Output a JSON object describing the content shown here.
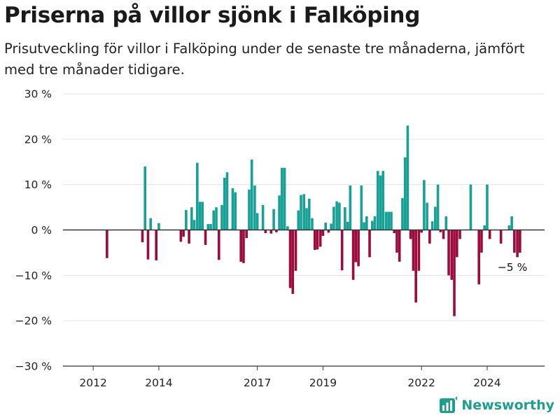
{
  "header": {
    "title": "Priserna på villor sjönk i Falköping",
    "subtitle": "Prisutveckling för villor i Falköping under de senaste tre månaderna, jämfört med tre månader tidigare."
  },
  "brand": {
    "name": "Newsworthy",
    "icon": "newsworthy-logo-icon"
  },
  "colors": {
    "positive": "#17a095",
    "negative": "#9b0b3d",
    "grid": "#e3e3e3",
    "zero": "#333333"
  },
  "chart_data": {
    "type": "bar",
    "title": "Priserna på villor sjönk i Falköping",
    "ylabel": "",
    "xlabel": "",
    "ylim": [
      -30,
      30
    ],
    "y_ticks": [
      {
        "value": 30,
        "label": "30 %"
      },
      {
        "value": 20,
        "label": "20 %"
      },
      {
        "value": 10,
        "label": "10 %"
      },
      {
        "value": 0,
        "label": "0 %"
      },
      {
        "value": -10,
        "label": "−10 %"
      },
      {
        "value": -20,
        "label": "−20 %"
      },
      {
        "value": -30,
        "label": "−30 %"
      }
    ],
    "x_ticks": [
      {
        "value": 2012.0,
        "label": "2012"
      },
      {
        "value": 2014.0,
        "label": "2014"
      },
      {
        "value": 2017.0,
        "label": "2017"
      },
      {
        "value": 2019.0,
        "label": "2019"
      },
      {
        "value": 2022.0,
        "label": "2022"
      },
      {
        "value": 2024.0,
        "label": "2024"
      }
    ],
    "xlim": [
      2011.08,
      2025.75
    ],
    "annotation": {
      "x": 2024.92,
      "value": -5,
      "label": "−5 %"
    },
    "points": [
      {
        "x": 2012.42,
        "v": -6.2
      },
      {
        "x": 2013.5,
        "v": -2.7
      },
      {
        "x": 2013.58,
        "v": 14.0
      },
      {
        "x": 2013.67,
        "v": -6.5
      },
      {
        "x": 2013.75,
        "v": 2.6
      },
      {
        "x": 2013.92,
        "v": -6.7
      },
      {
        "x": 2014.0,
        "v": 1.5
      },
      {
        "x": 2014.67,
        "v": -2.6
      },
      {
        "x": 2014.75,
        "v": -1.5
      },
      {
        "x": 2014.83,
        "v": 4.4
      },
      {
        "x": 2014.92,
        "v": -3.0
      },
      {
        "x": 2015.0,
        "v": 5.0
      },
      {
        "x": 2015.08,
        "v": 2.2
      },
      {
        "x": 2015.17,
        "v": 14.8
      },
      {
        "x": 2015.25,
        "v": 6.2
      },
      {
        "x": 2015.33,
        "v": 6.2
      },
      {
        "x": 2015.42,
        "v": -3.3
      },
      {
        "x": 2015.5,
        "v": 1.3
      },
      {
        "x": 2015.58,
        "v": 1.3
      },
      {
        "x": 2015.67,
        "v": 4.3
      },
      {
        "x": 2015.75,
        "v": 5.0
      },
      {
        "x": 2015.83,
        "v": -6.6
      },
      {
        "x": 2015.92,
        "v": 5.5
      },
      {
        "x": 2016.0,
        "v": 11.5
      },
      {
        "x": 2016.08,
        "v": 12.7
      },
      {
        "x": 2016.17,
        "v": 0.2
      },
      {
        "x": 2016.25,
        "v": 9.2
      },
      {
        "x": 2016.33,
        "v": 8.3
      },
      {
        "x": 2016.5,
        "v": -7.0
      },
      {
        "x": 2016.58,
        "v": -7.3
      },
      {
        "x": 2016.67,
        "v": -1.8
      },
      {
        "x": 2016.75,
        "v": 8.9
      },
      {
        "x": 2016.83,
        "v": 15.5
      },
      {
        "x": 2016.92,
        "v": 9.8
      },
      {
        "x": 2017.0,
        "v": 3.7
      },
      {
        "x": 2017.17,
        "v": 5.5
      },
      {
        "x": 2017.25,
        "v": -0.7
      },
      {
        "x": 2017.42,
        "v": -0.8
      },
      {
        "x": 2017.5,
        "v": 4.6
      },
      {
        "x": 2017.58,
        "v": -0.5
      },
      {
        "x": 2017.67,
        "v": 7.6
      },
      {
        "x": 2017.75,
        "v": 13.7
      },
      {
        "x": 2017.83,
        "v": 13.7
      },
      {
        "x": 2017.92,
        "v": 0.8
      },
      {
        "x": 2018.0,
        "v": -12.8
      },
      {
        "x": 2018.08,
        "v": -14.1
      },
      {
        "x": 2018.17,
        "v": -9.0
      },
      {
        "x": 2018.25,
        "v": 4.3
      },
      {
        "x": 2018.33,
        "v": 7.7
      },
      {
        "x": 2018.42,
        "v": 7.9
      },
      {
        "x": 2018.5,
        "v": 4.8
      },
      {
        "x": 2018.58,
        "v": 6.9
      },
      {
        "x": 2018.67,
        "v": 2.6
      },
      {
        "x": 2018.75,
        "v": -4.4
      },
      {
        "x": 2018.83,
        "v": -4.3
      },
      {
        "x": 2018.92,
        "v": -3.7
      },
      {
        "x": 2019.0,
        "v": -1.3
      },
      {
        "x": 2019.08,
        "v": 1.6
      },
      {
        "x": 2019.17,
        "v": -0.6
      },
      {
        "x": 2019.25,
        "v": 1.4
      },
      {
        "x": 2019.33,
        "v": 5.1
      },
      {
        "x": 2019.42,
        "v": 6.3
      },
      {
        "x": 2019.5,
        "v": 6.0
      },
      {
        "x": 2019.58,
        "v": -8.9
      },
      {
        "x": 2019.67,
        "v": 5.0
      },
      {
        "x": 2019.75,
        "v": 1.8
      },
      {
        "x": 2019.83,
        "v": 9.8
      },
      {
        "x": 2019.92,
        "v": -11.0
      },
      {
        "x": 2020.0,
        "v": -7.1
      },
      {
        "x": 2020.08,
        "v": -8.0
      },
      {
        "x": 2020.17,
        "v": 9.8
      },
      {
        "x": 2020.25,
        "v": 1.7
      },
      {
        "x": 2020.33,
        "v": 3.0
      },
      {
        "x": 2020.42,
        "v": -6.0
      },
      {
        "x": 2020.5,
        "v": 2.0
      },
      {
        "x": 2020.58,
        "v": 3.0
      },
      {
        "x": 2020.67,
        "v": 13.0
      },
      {
        "x": 2020.75,
        "v": 12.0
      },
      {
        "x": 2020.83,
        "v": 13.0
      },
      {
        "x": 2020.92,
        "v": 4.0
      },
      {
        "x": 2021.0,
        "v": 4.0
      },
      {
        "x": 2021.08,
        "v": 4.0
      },
      {
        "x": 2021.17,
        "v": -0.7
      },
      {
        "x": 2021.25,
        "v": -5.0
      },
      {
        "x": 2021.33,
        "v": -7.0
      },
      {
        "x": 2021.42,
        "v": 7.0
      },
      {
        "x": 2021.5,
        "v": 16.0
      },
      {
        "x": 2021.58,
        "v": 23.0
      },
      {
        "x": 2021.67,
        "v": -2.0
      },
      {
        "x": 2021.75,
        "v": -9.0
      },
      {
        "x": 2021.83,
        "v": -16.0
      },
      {
        "x": 2021.92,
        "v": -9.0
      },
      {
        "x": 2022.0,
        "v": -0.6
      },
      {
        "x": 2022.08,
        "v": 11.0
      },
      {
        "x": 2022.17,
        "v": 6.0
      },
      {
        "x": 2022.25,
        "v": -3.0
      },
      {
        "x": 2022.33,
        "v": 1.9
      },
      {
        "x": 2022.42,
        "v": 5.1
      },
      {
        "x": 2022.5,
        "v": 10.0
      },
      {
        "x": 2022.58,
        "v": -0.5
      },
      {
        "x": 2022.67,
        "v": -2.0
      },
      {
        "x": 2022.75,
        "v": 3.0
      },
      {
        "x": 2022.83,
        "v": -10.0
      },
      {
        "x": 2022.92,
        "v": -11.0
      },
      {
        "x": 2023.0,
        "v": -19.0
      },
      {
        "x": 2023.08,
        "v": -6.0
      },
      {
        "x": 2023.17,
        "v": -2.0
      },
      {
        "x": 2023.5,
        "v": 10.0
      },
      {
        "x": 2023.75,
        "v": -12.0
      },
      {
        "x": 2023.83,
        "v": -5.0
      },
      {
        "x": 2023.92,
        "v": 1.0
      },
      {
        "x": 2024.0,
        "v": 10.0
      },
      {
        "x": 2024.08,
        "v": -2.0
      },
      {
        "x": 2024.42,
        "v": -3.0
      },
      {
        "x": 2024.67,
        "v": 1.0
      },
      {
        "x": 2024.75,
        "v": 3.0
      },
      {
        "x": 2024.83,
        "v": -5.0
      },
      {
        "x": 2024.92,
        "v": -6.0
      },
      {
        "x": 2025.0,
        "v": -5.0
      }
    ]
  }
}
